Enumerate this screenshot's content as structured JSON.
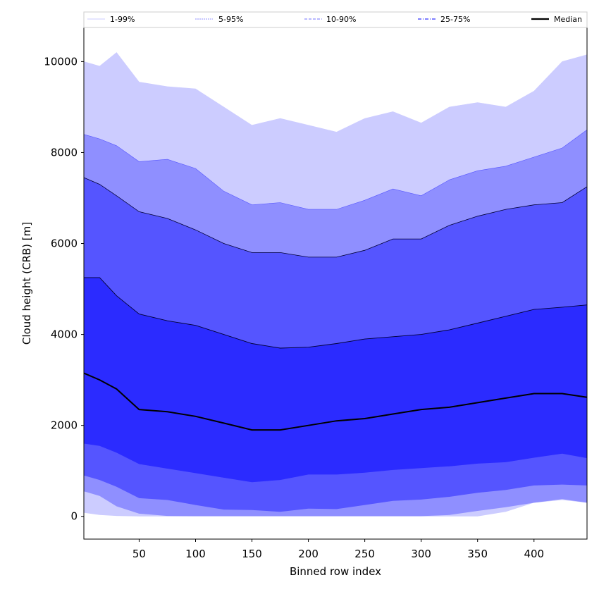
{
  "chart_data": {
    "type": "area",
    "title": "",
    "xlabel": "Binned row index",
    "ylabel": "Cloud height (CRB) [m]",
    "xlim": [
      1,
      447
    ],
    "ylim": [
      -500,
      10750
    ],
    "xticks": [
      50,
      100,
      150,
      200,
      250,
      300,
      350,
      400
    ],
    "yticks": [
      0,
      2000,
      4000,
      6000,
      8000,
      10000
    ],
    "grid": false,
    "legend_position": "top",
    "legend": [
      "1-99%",
      "5-95%",
      "10-90%",
      "25-75%",
      "Median"
    ],
    "x": [
      1,
      15,
      30,
      50,
      75,
      100,
      125,
      150,
      175,
      200,
      225,
      250,
      275,
      300,
      325,
      350,
      375,
      400,
      425,
      447
    ],
    "bands": [
      {
        "name": "1-99%",
        "color": "#ccccff",
        "lower": [
          80,
          30,
          10,
          0,
          0,
          0,
          0,
          0,
          0,
          0,
          0,
          0,
          0,
          0,
          0,
          0,
          100,
          300,
          360,
          300
        ],
        "upper": [
          10000,
          9900,
          10200,
          9550,
          9450,
          9400,
          9000,
          8600,
          8750,
          8600,
          8450,
          8750,
          8900,
          8650,
          9000,
          9100,
          9000,
          9350,
          10000,
          10150
        ]
      },
      {
        "name": "5-95%",
        "color": "#8f8fff",
        "lower": [
          550,
          450,
          220,
          60,
          10,
          5,
          5,
          5,
          5,
          5,
          5,
          5,
          5,
          5,
          30,
          120,
          200,
          300,
          380,
          300
        ],
        "upper": [
          8400,
          8300,
          8150,
          7800,
          7850,
          7650,
          7150,
          6850,
          6900,
          6750,
          6750,
          6950,
          7200,
          7050,
          7400,
          7600,
          7700,
          7900,
          8100,
          8500
        ]
      },
      {
        "name": "10-90%",
        "color": "#5555ff",
        "lower": [
          900,
          800,
          650,
          400,
          360,
          250,
          150,
          140,
          100,
          170,
          160,
          250,
          340,
          370,
          430,
          520,
          580,
          680,
          700,
          680
        ],
        "upper": [
          7450,
          7300,
          7050,
          6700,
          6550,
          6300,
          6000,
          5800,
          5800,
          5700,
          5700,
          5850,
          6100,
          6100,
          6400,
          6600,
          6750,
          6850,
          6900,
          7250
        ]
      },
      {
        "name": "25-75%",
        "color": "#2b2bff",
        "lower": [
          1600,
          1550,
          1400,
          1150,
          1050,
          950,
          850,
          750,
          800,
          920,
          920,
          960,
          1020,
          1060,
          1100,
          1160,
          1190,
          1290,
          1380,
          1280
        ],
        "upper": [
          5250,
          5250,
          4850,
          4450,
          4300,
          4200,
          4000,
          3800,
          3700,
          3720,
          3800,
          3900,
          3950,
          4000,
          4100,
          4250,
          4400,
          4550,
          4600,
          4650
        ]
      }
    ],
    "series": [
      {
        "name": "Median",
        "color": "#000000",
        "values": [
          3150,
          3000,
          2800,
          2350,
          2300,
          2200,
          2050,
          1900,
          1900,
          2000,
          2100,
          2150,
          2250,
          2350,
          2400,
          2500,
          2600,
          2700,
          2700,
          2620
        ]
      }
    ]
  }
}
